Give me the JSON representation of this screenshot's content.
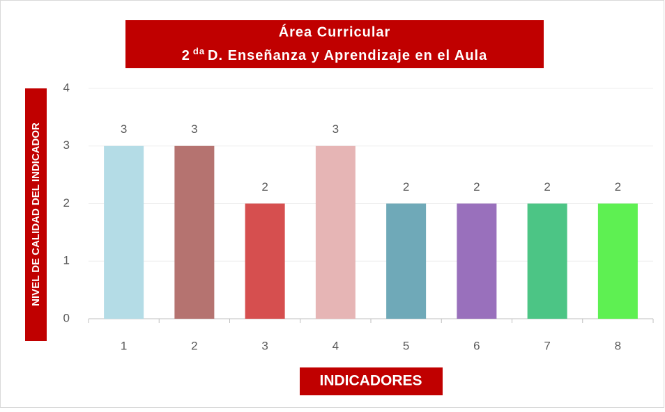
{
  "chart_data": {
    "type": "bar",
    "title": "Área Curricular",
    "subtitle": [
      "2",
      "da",
      "D. Enseñanza y Aprendizaje en el Aula"
    ],
    "x_label": "INDICADORES",
    "y_label": "NIVEL DE CALIDAD DEL INDICADOR",
    "categories": [
      "1",
      "2",
      "3",
      "4",
      "5",
      "6",
      "7",
      "8"
    ],
    "values": [
      3,
      3,
      2,
      3,
      2,
      2,
      2,
      2
    ],
    "colors": [
      "#b4dce6",
      "#b57370",
      "#d64f4f",
      "#e6b5b5",
      "#6fa9b8",
      "#9970bc",
      "#4cc585",
      "#5ef052"
    ],
    "ylim": [
      0,
      4
    ],
    "yticks": [
      0,
      1,
      2,
      3,
      4
    ],
    "grid": true
  }
}
